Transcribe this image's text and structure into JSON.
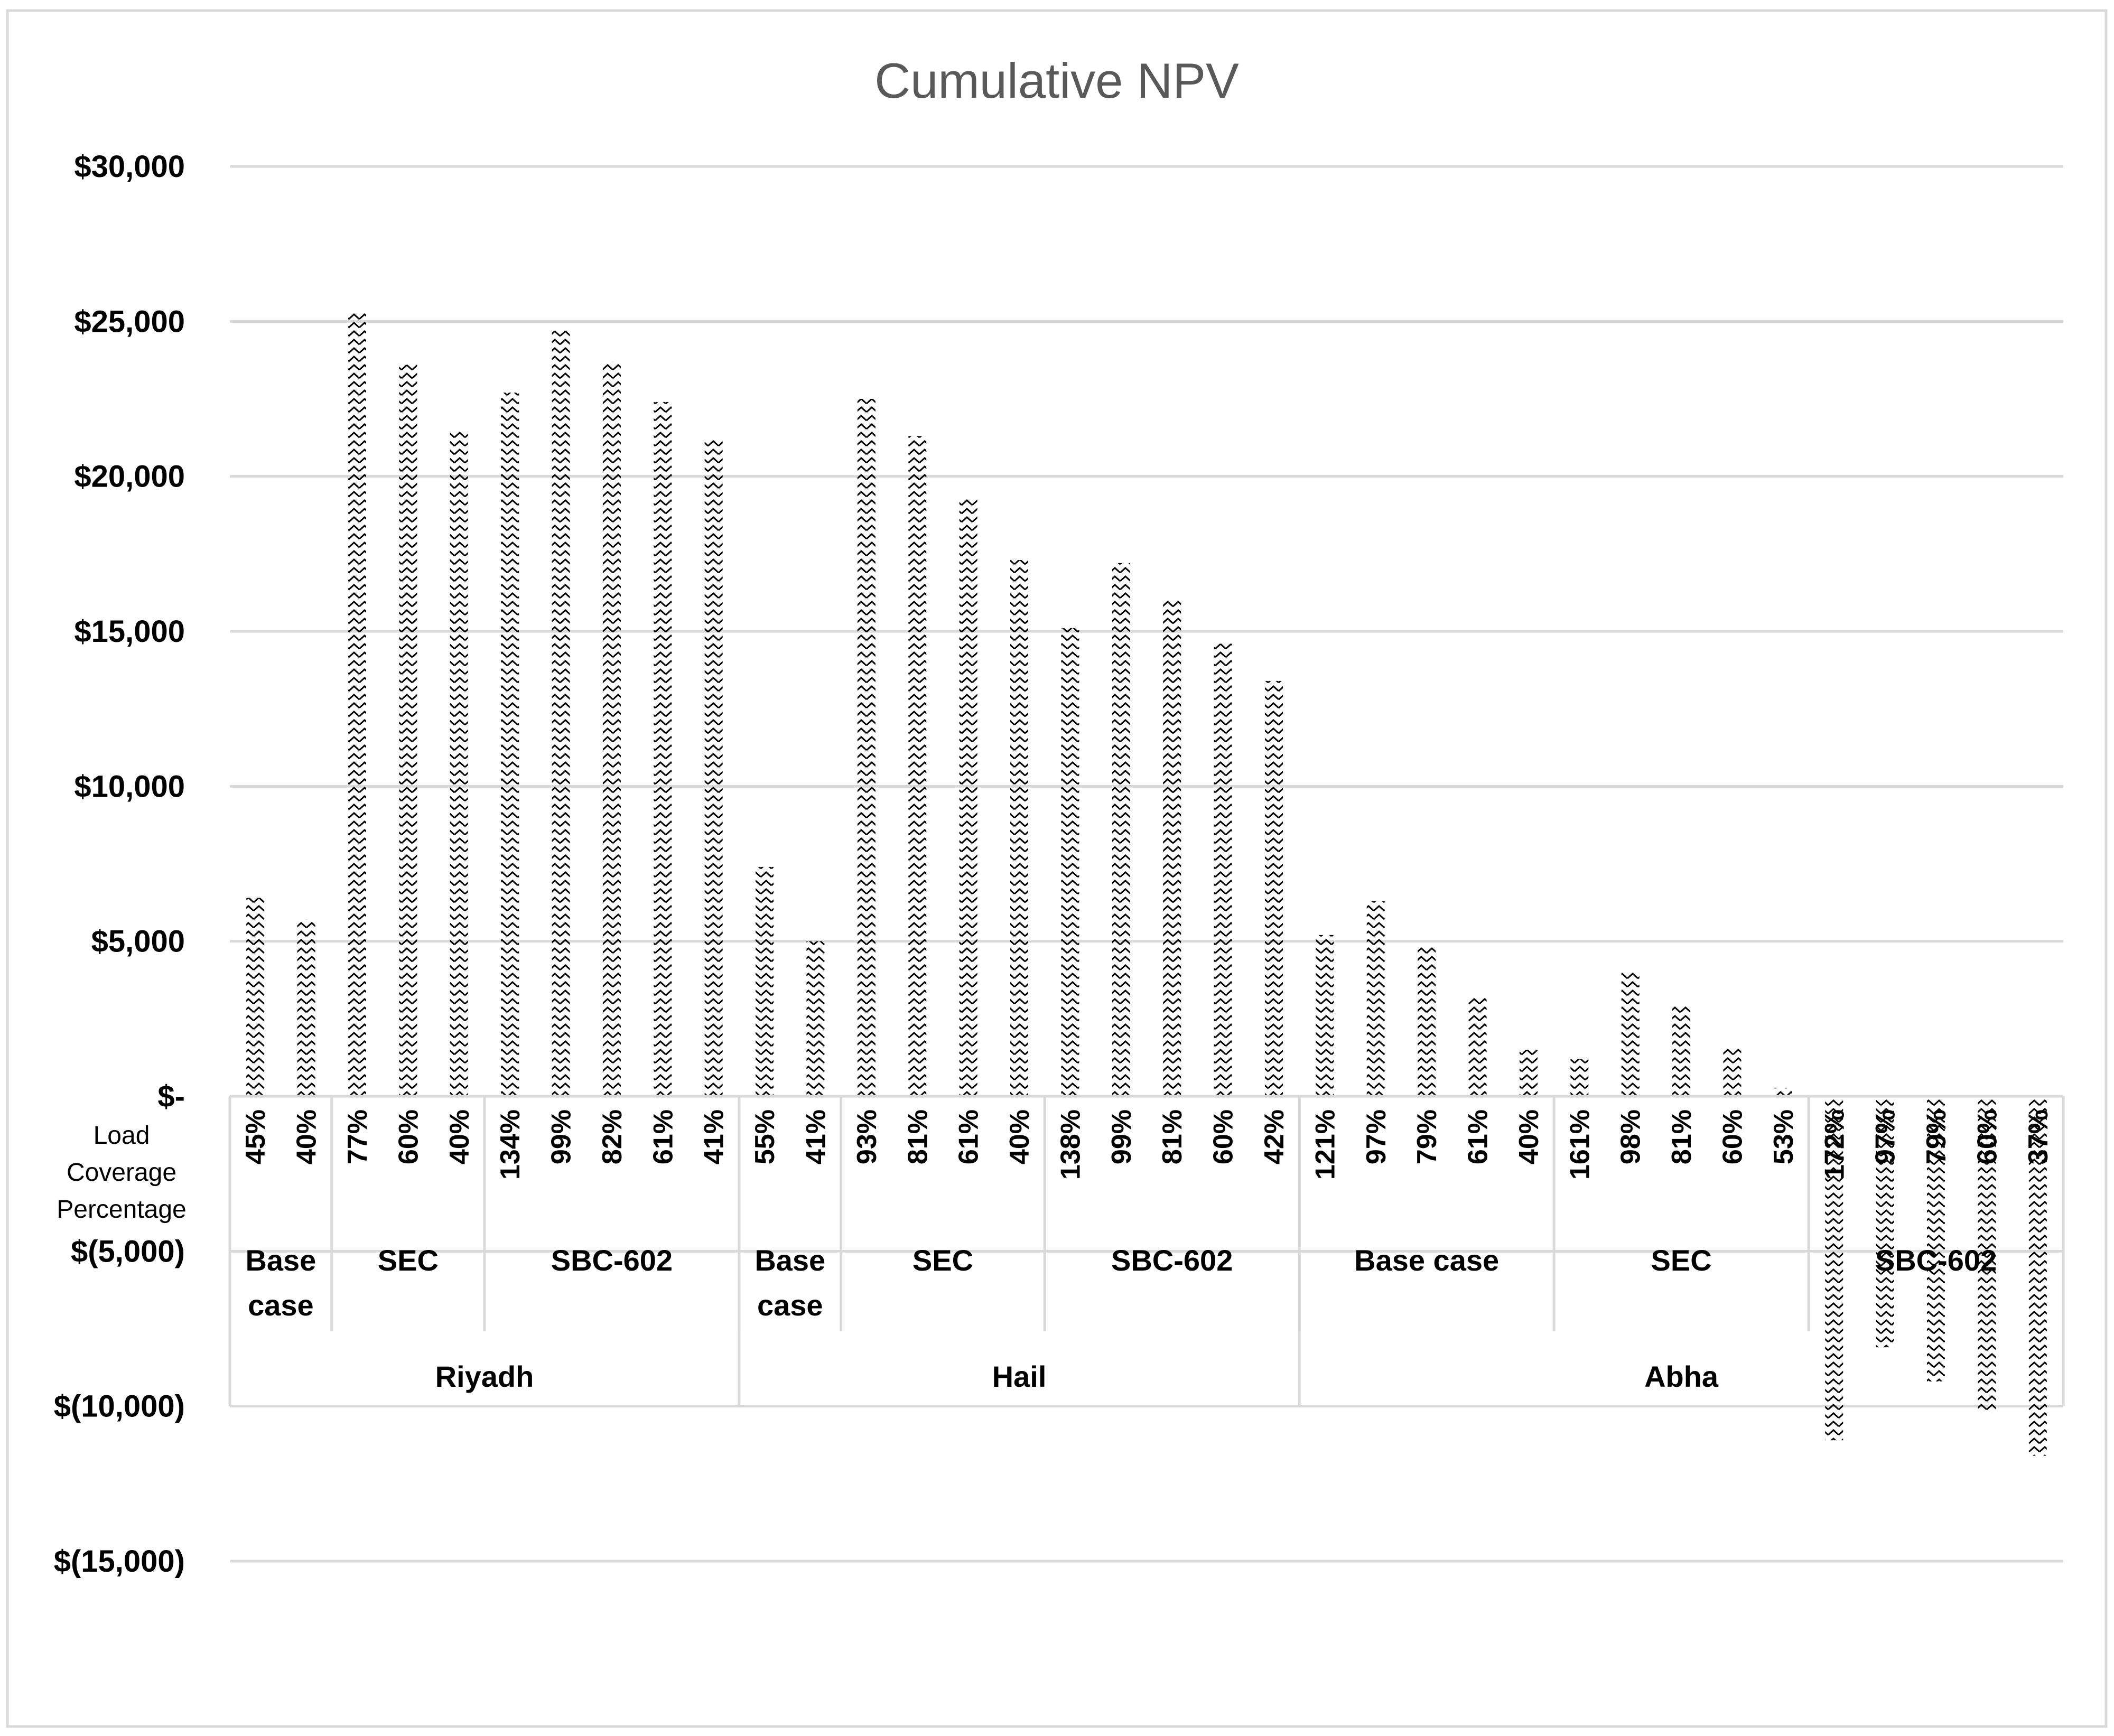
{
  "chart_data": {
    "type": "bar",
    "title": "Cumulative NPV",
    "x_axis_caption": [
      "Load",
      "Coverage",
      "Percentage"
    ],
    "ylim": [
      -15000,
      30000
    ],
    "y_ticks": [
      30000,
      25000,
      20000,
      15000,
      10000,
      5000,
      0,
      -5000,
      -10000,
      -15000
    ],
    "y_tick_labels": [
      "$30,000",
      "$25,000",
      "$20,000",
      "$15,000",
      "$10,000",
      "$5,000",
      "$-",
      "$(5,000)",
      "$(10,000)",
      "$(15,000)"
    ],
    "grid": true,
    "pattern": "zigzag",
    "categories": [
      "45%",
      "40%",
      "77%",
      "60%",
      "40%",
      "134%",
      "99%",
      "82%",
      "61%",
      "41%",
      "55%",
      "41%",
      "93%",
      "81%",
      "61%",
      "40%",
      "138%",
      "99%",
      "81%",
      "60%",
      "42%",
      "121%",
      "97%",
      "79%",
      "61%",
      "40%",
      "161%",
      "98%",
      "81%",
      "60%",
      "53%",
      "172%",
      "97%",
      "79%",
      "60%",
      "37%"
    ],
    "values": [
      6400,
      5700,
      25300,
      23600,
      21500,
      22700,
      24700,
      23700,
      22400,
      21200,
      7400,
      5000,
      22500,
      21300,
      19300,
      17300,
      15100,
      17200,
      16000,
      14600,
      13400,
      5200,
      6300,
      4800,
      3200,
      1500,
      1200,
      4000,
      2900,
      1600,
      250,
      -11100,
      -8100,
      -9200,
      -10200,
      -11600
    ],
    "scenario_groups": [
      {
        "label": "Base case",
        "lines": [
          "Base",
          "case"
        ],
        "count": 2
      },
      {
        "label": "SEC",
        "lines": [
          "SEC"
        ],
        "count": 3
      },
      {
        "label": "SBC-602",
        "lines": [
          "SBC-602"
        ],
        "count": 5
      },
      {
        "label": "Base case",
        "lines": [
          "Base",
          "case"
        ],
        "count": 2
      },
      {
        "label": "SEC",
        "lines": [
          "SEC"
        ],
        "count": 4
      },
      {
        "label": "SBC-602",
        "lines": [
          "SBC-602"
        ],
        "count": 5
      },
      {
        "label": "Base case",
        "lines": [
          "Base case"
        ],
        "count": 5
      },
      {
        "label": "SEC",
        "lines": [
          "SEC"
        ],
        "count": 5
      },
      {
        "label": "SBC-602",
        "lines": [
          "SBC-602"
        ],
        "count": 5
      }
    ],
    "city_groups": [
      {
        "label": "Riyadh",
        "count": 10
      },
      {
        "label": "Hail",
        "count": 11
      },
      {
        "label": "Abha",
        "count": 15
      }
    ]
  }
}
